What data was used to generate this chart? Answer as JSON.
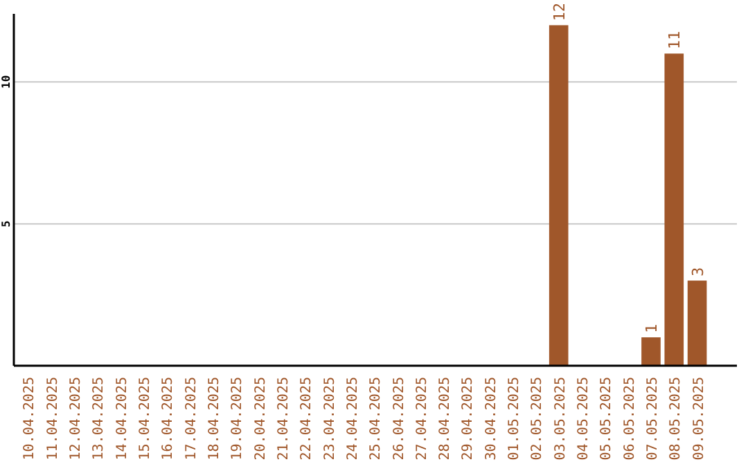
{
  "chart_data": {
    "type": "bar",
    "categories": [
      "10.04.2025",
      "11.04.2025",
      "12.04.2025",
      "13.04.2025",
      "14.04.2025",
      "15.04.2025",
      "16.04.2025",
      "17.04.2025",
      "18.04.2025",
      "19.04.2025",
      "20.04.2025",
      "21.04.2025",
      "22.04.2025",
      "23.04.2025",
      "24.04.2025",
      "25.04.2025",
      "26.04.2025",
      "27.04.2025",
      "28.04.2025",
      "29.04.2025",
      "30.04.2025",
      "01.05.2025",
      "02.05.2025",
      "03.05.2025",
      "04.05.2025",
      "05.05.2025",
      "06.05.2025",
      "07.05.2025",
      "08.05.2025",
      "09.05.2025"
    ],
    "values": [
      0,
      0,
      0,
      0,
      0,
      0,
      0,
      0,
      0,
      0,
      0,
      0,
      0,
      0,
      0,
      0,
      0,
      0,
      0,
      0,
      0,
      0,
      0,
      12,
      0,
      0,
      0,
      1,
      11,
      3
    ],
    "value_labels": [
      null,
      null,
      null,
      null,
      null,
      null,
      null,
      null,
      null,
      null,
      null,
      null,
      null,
      null,
      null,
      null,
      null,
      null,
      null,
      null,
      null,
      null,
      null,
      "12",
      null,
      null,
      null,
      "1",
      "11",
      "3"
    ],
    "color": "#a0572a",
    "ylim": [
      0,
      12.4
    ],
    "yticks": [
      5,
      10
    ],
    "grid": "y"
  }
}
